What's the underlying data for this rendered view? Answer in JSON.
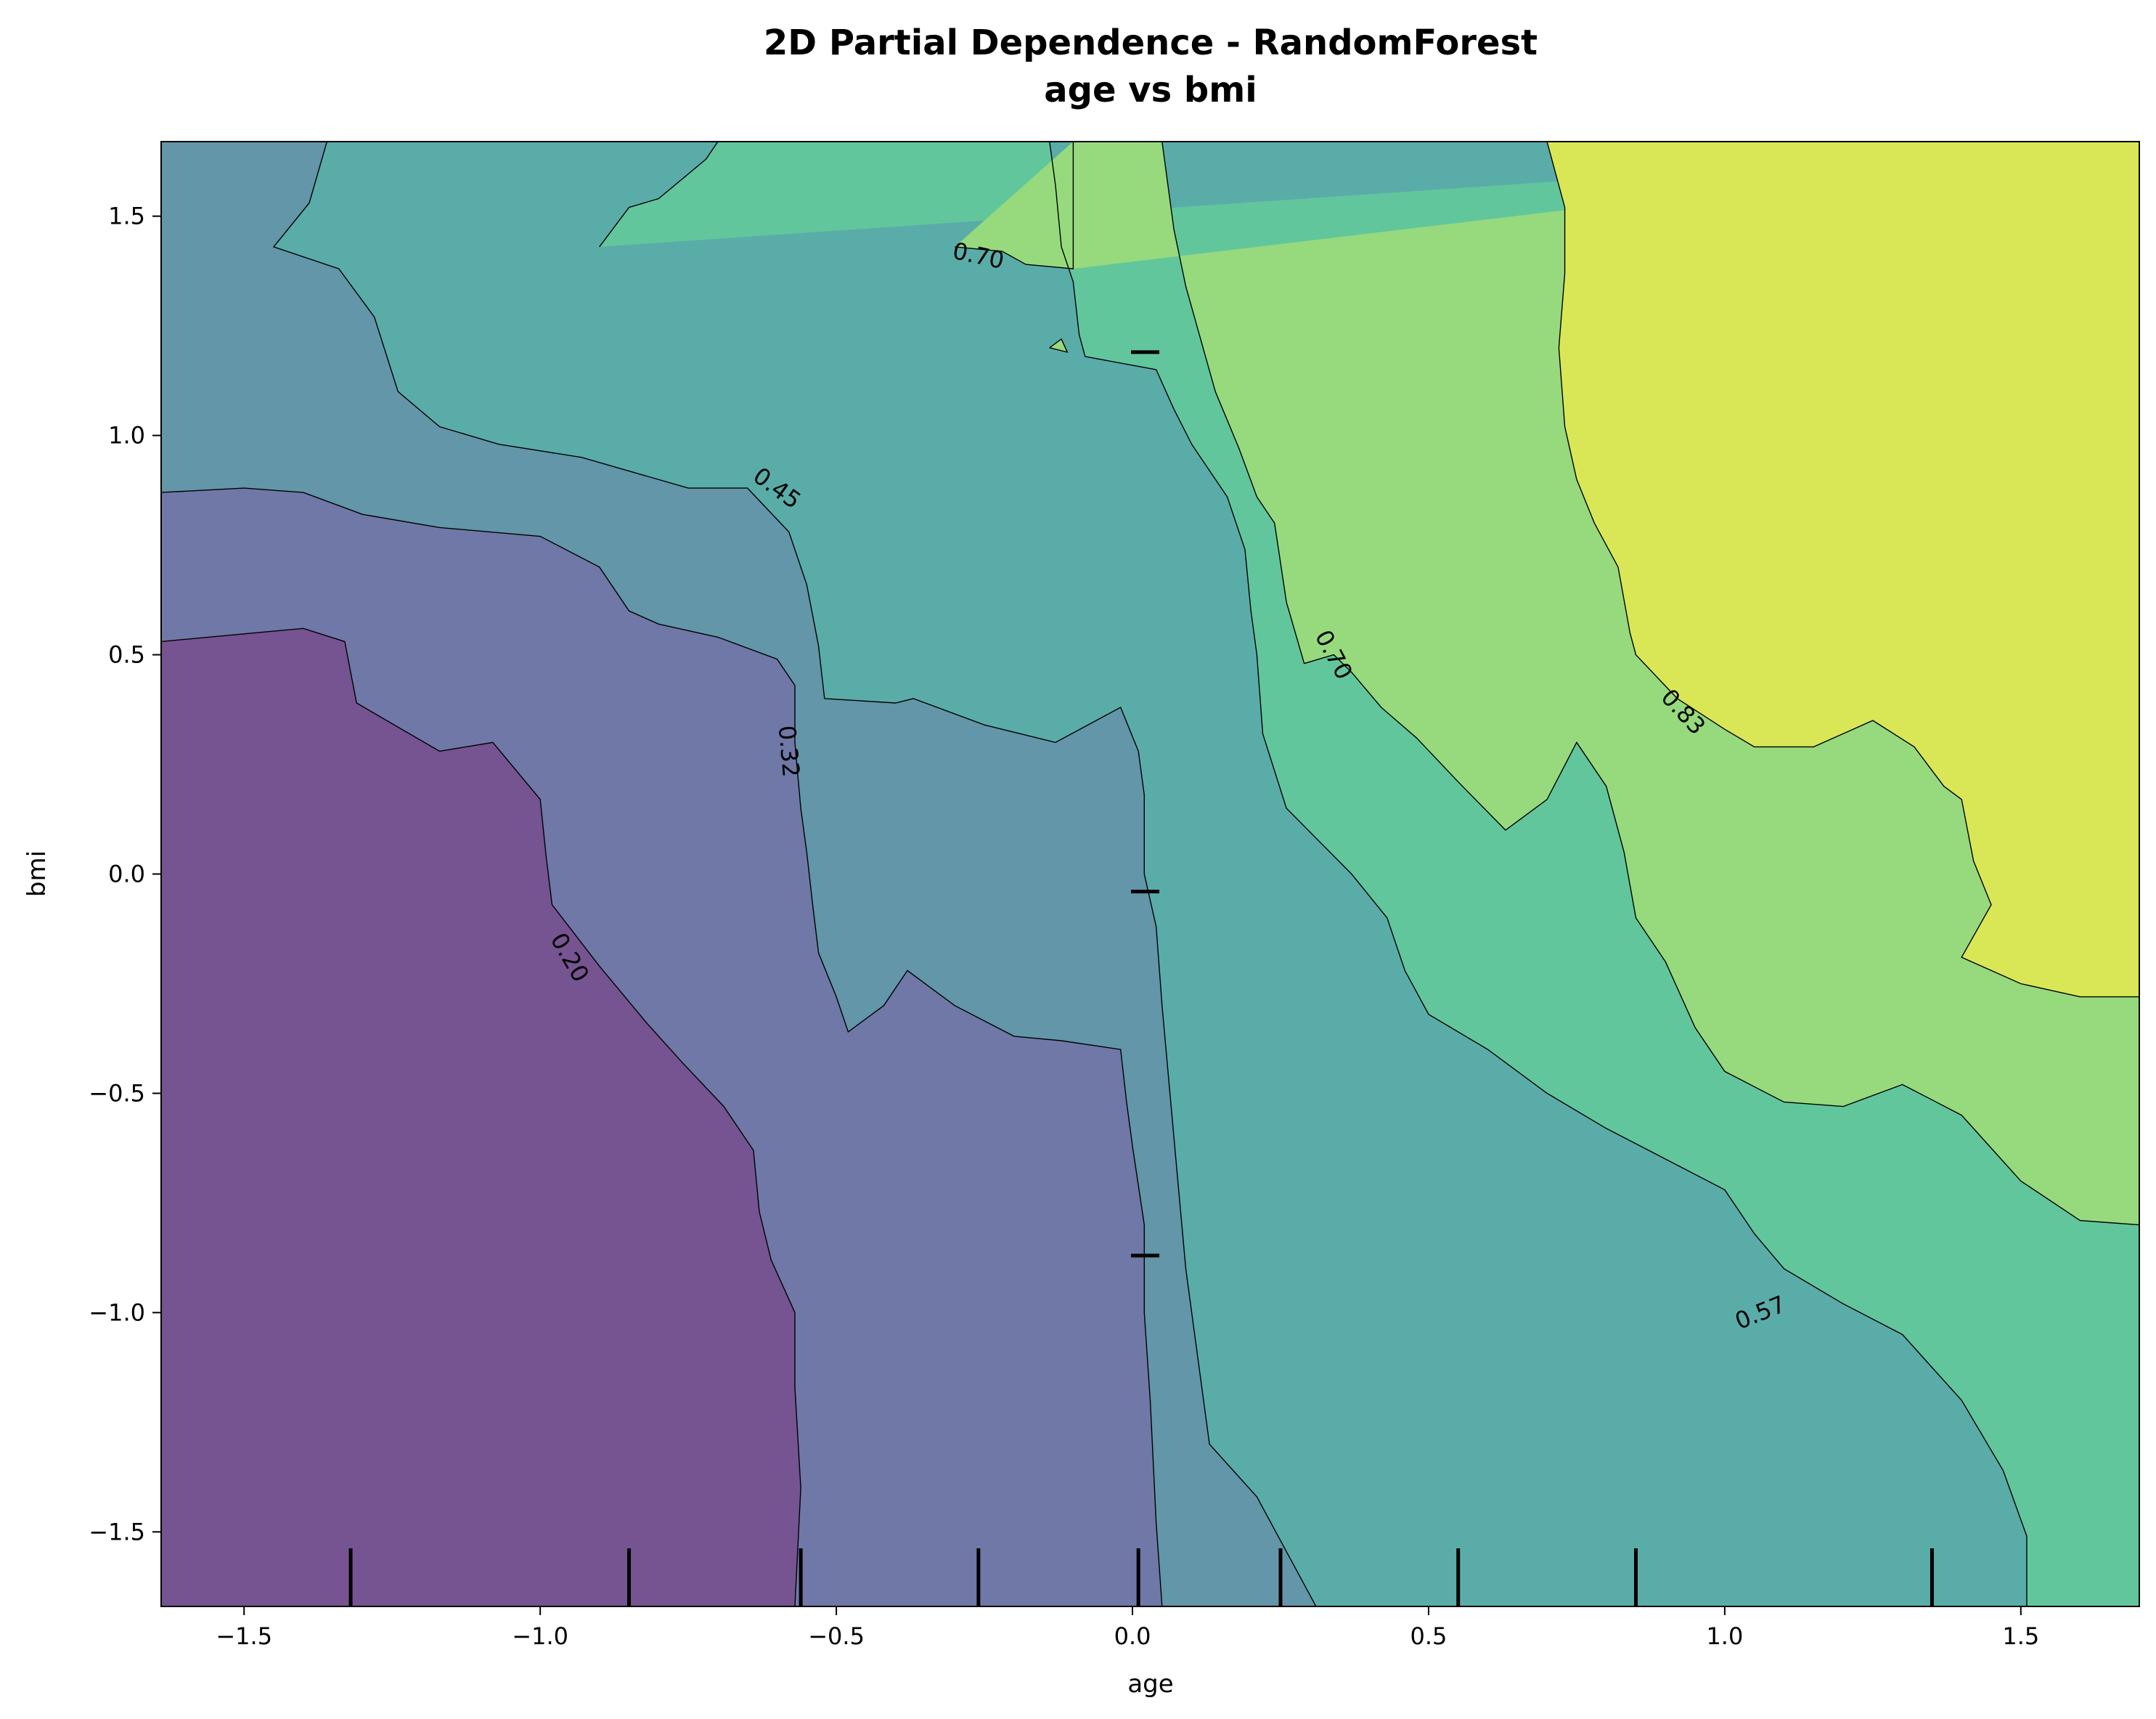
{
  "chart_data": {
    "type": "contour",
    "title": "2D Partial Dependence - RandomForest",
    "subtitle": "age vs bmi",
    "xlabel": "age",
    "ylabel": "bmi",
    "xlim": [
      -1.64,
      1.7
    ],
    "ylim": [
      -1.67,
      1.67
    ],
    "xticks": [
      {
        "value": -1.5,
        "label": "−1.5"
      },
      {
        "value": -1.0,
        "label": "−1.0"
      },
      {
        "value": -0.5,
        "label": "−0.5"
      },
      {
        "value": 0.0,
        "label": "0.0"
      },
      {
        "value": 0.5,
        "label": "0.5"
      },
      {
        "value": 1.0,
        "label": "1.0"
      },
      {
        "value": 1.5,
        "label": "1.5"
      }
    ],
    "yticks": [
      {
        "value": -1.5,
        "label": "−1.5"
      },
      {
        "value": -1.0,
        "label": "−1.0"
      },
      {
        "value": -0.5,
        "label": "−0.5"
      },
      {
        "value": 0.0,
        "label": "0.0"
      },
      {
        "value": 0.5,
        "label": "0.5"
      },
      {
        "value": 1.0,
        "label": "1.0"
      },
      {
        "value": 1.5,
        "label": "1.5"
      }
    ],
    "fill_colors": [
      "#765391",
      "#6f78a6",
      "#6296a8",
      "#5aaca9",
      "#62c69c",
      "#96da7d",
      "#d9e756"
    ],
    "contour_levels": [
      0.2,
      0.32,
      0.45,
      0.57,
      0.7,
      0.83
    ],
    "contour_lines": [
      {
        "level": 0.2,
        "points": [
          [
            -1.64,
            0.53
          ],
          [
            -1.4,
            0.56
          ],
          [
            -1.33,
            0.53
          ],
          [
            -1.31,
            0.39
          ],
          [
            -1.17,
            0.28
          ],
          [
            -1.08,
            0.3
          ],
          [
            -1.0,
            0.17
          ],
          [
            -0.99,
            0.04
          ],
          [
            -0.98,
            -0.07
          ],
          [
            -0.9,
            -0.21
          ],
          [
            -0.82,
            -0.34
          ],
          [
            -0.76,
            -0.43
          ],
          [
            -0.69,
            -0.53
          ],
          [
            -0.64,
            -0.63
          ],
          [
            -0.63,
            -0.77
          ],
          [
            -0.61,
            -0.88
          ],
          [
            -0.57,
            -1.0
          ],
          [
            -0.57,
            -1.17
          ],
          [
            -0.56,
            -1.4
          ],
          [
            -0.57,
            -1.67
          ]
        ]
      },
      {
        "level": 0.32,
        "points": [
          [
            -1.64,
            0.87
          ],
          [
            -1.5,
            0.88
          ],
          [
            -1.4,
            0.87
          ],
          [
            -1.3,
            0.82
          ],
          [
            -1.17,
            0.79
          ],
          [
            -1.0,
            0.77
          ],
          [
            -0.9,
            0.7
          ],
          [
            -0.85,
            0.6
          ],
          [
            -0.8,
            0.57
          ],
          [
            -0.7,
            0.54
          ],
          [
            -0.6,
            0.49
          ],
          [
            -0.57,
            0.43
          ],
          [
            -0.57,
            0.3
          ],
          [
            -0.56,
            0.15
          ],
          [
            -0.55,
            0.05
          ],
          [
            -0.54,
            -0.07
          ],
          [
            -0.53,
            -0.18
          ],
          [
            -0.5,
            -0.28
          ],
          [
            -0.48,
            -0.36
          ],
          [
            -0.42,
            -0.3
          ],
          [
            -0.38,
            -0.22
          ],
          [
            -0.3,
            -0.3
          ],
          [
            -0.2,
            -0.37
          ],
          [
            -0.12,
            -0.38
          ],
          [
            -0.02,
            -0.4
          ],
          [
            -0.01,
            -0.52
          ],
          [
            0.0,
            -0.62
          ],
          [
            0.02,
            -0.8
          ],
          [
            0.02,
            -1.0
          ],
          [
            0.03,
            -1.2
          ],
          [
            0.04,
            -1.48
          ],
          [
            0.05,
            -1.67
          ]
        ]
      },
      {
        "level": 0.45,
        "points": [
          [
            -1.64,
            1.67
          ],
          [
            -1.36,
            1.67
          ],
          [
            -1.39,
            1.53
          ],
          [
            -1.45,
            1.43
          ],
          [
            -1.34,
            1.38
          ],
          [
            -1.28,
            1.27
          ],
          [
            -1.24,
            1.1
          ],
          [
            -1.17,
            1.02
          ],
          [
            -1.07,
            0.98
          ],
          [
            -0.93,
            0.95
          ],
          [
            -0.75,
            0.88
          ],
          [
            -0.65,
            0.88
          ],
          [
            -0.58,
            0.78
          ],
          [
            -0.55,
            0.66
          ],
          [
            -0.53,
            0.52
          ],
          [
            -0.52,
            0.4
          ],
          [
            -0.4,
            0.39
          ],
          [
            -0.37,
            0.4
          ],
          [
            -0.25,
            0.34
          ],
          [
            -0.13,
            0.3
          ],
          [
            -0.02,
            0.38
          ],
          [
            0.01,
            0.28
          ],
          [
            0.02,
            0.18
          ],
          [
            0.02,
            0.0
          ],
          [
            0.04,
            -0.12
          ],
          [
            0.05,
            -0.3
          ],
          [
            0.07,
            -0.6
          ],
          [
            0.09,
            -0.9
          ],
          [
            0.11,
            -1.1
          ],
          [
            0.13,
            -1.3
          ],
          [
            0.21,
            -1.42
          ],
          [
            0.31,
            -1.67
          ]
        ]
      },
      {
        "level": 0.57,
        "points": [
          [
            -0.9,
            1.43
          ],
          [
            -0.85,
            1.52
          ],
          [
            -0.8,
            1.54
          ],
          [
            -0.72,
            1.63
          ],
          [
            -0.7,
            1.67
          ],
          [
            -0.14,
            1.67
          ],
          [
            -0.13,
            1.57
          ],
          [
            -0.12,
            1.43
          ],
          [
            -0.1,
            1.35
          ],
          [
            -0.09,
            1.23
          ],
          [
            -0.08,
            1.18
          ],
          [
            0.04,
            1.15
          ],
          [
            0.07,
            1.06
          ],
          [
            0.1,
            0.98
          ],
          [
            0.16,
            0.86
          ],
          [
            0.19,
            0.74
          ],
          [
            0.2,
            0.6
          ],
          [
            0.21,
            0.5
          ],
          [
            0.22,
            0.32
          ],
          [
            0.26,
            0.15
          ],
          [
            0.37,
            0.0
          ],
          [
            0.43,
            -0.1
          ],
          [
            0.46,
            -0.22
          ],
          [
            0.5,
            -0.32
          ],
          [
            0.6,
            -0.4
          ],
          [
            0.7,
            -0.5
          ],
          [
            0.8,
            -0.58
          ],
          [
            0.9,
            -0.65
          ],
          [
            1.0,
            -0.72
          ],
          [
            1.05,
            -0.82
          ],
          [
            1.1,
            -0.9
          ],
          [
            1.2,
            -0.98
          ],
          [
            1.3,
            -1.05
          ],
          [
            1.4,
            -1.2
          ],
          [
            1.47,
            -1.36
          ],
          [
            1.51,
            -1.51
          ],
          [
            1.51,
            -1.67
          ]
        ]
      },
      {
        "level": 0.7,
        "points": [
          [
            -0.3,
            1.43
          ],
          [
            -0.22,
            1.42
          ],
          [
            -0.18,
            1.39
          ],
          [
            -0.1,
            1.38
          ],
          [
            -0.1,
            1.55
          ],
          [
            -0.1,
            1.67
          ],
          [
            0.05,
            1.67
          ],
          [
            0.07,
            1.47
          ],
          [
            0.09,
            1.34
          ],
          [
            0.14,
            1.1
          ],
          [
            0.18,
            0.97
          ],
          [
            0.21,
            0.86
          ],
          [
            0.24,
            0.8
          ],
          [
            0.26,
            0.62
          ],
          [
            0.29,
            0.48
          ],
          [
            0.34,
            0.5
          ],
          [
            0.37,
            0.46
          ],
          [
            0.42,
            0.38
          ],
          [
            0.48,
            0.31
          ],
          [
            0.55,
            0.21
          ],
          [
            0.63,
            0.1
          ],
          [
            0.7,
            0.17
          ],
          [
            0.75,
            0.3
          ],
          [
            0.8,
            0.2
          ],
          [
            0.83,
            0.05
          ],
          [
            0.85,
            -0.1
          ],
          [
            0.9,
            -0.2
          ],
          [
            0.95,
            -0.35
          ],
          [
            1.0,
            -0.45
          ],
          [
            1.1,
            -0.52
          ],
          [
            1.2,
            -0.53
          ],
          [
            1.3,
            -0.48
          ],
          [
            1.4,
            -0.55
          ],
          [
            1.5,
            -0.7
          ],
          [
            1.6,
            -0.79
          ],
          [
            1.7,
            -0.8
          ]
        ]
      },
      {
        "level": 0.83,
        "points": [
          [
            0.7,
            1.67
          ],
          [
            0.73,
            1.52
          ],
          [
            0.73,
            1.37
          ],
          [
            0.72,
            1.2
          ],
          [
            0.73,
            1.02
          ],
          [
            0.75,
            0.9
          ],
          [
            0.78,
            0.8
          ],
          [
            0.82,
            0.7
          ],
          [
            0.84,
            0.55
          ],
          [
            0.85,
            0.5
          ],
          [
            0.92,
            0.4
          ],
          [
            1.0,
            0.33
          ],
          [
            1.05,
            0.29
          ],
          [
            1.15,
            0.29
          ],
          [
            1.25,
            0.35
          ],
          [
            1.32,
            0.29
          ],
          [
            1.37,
            0.2
          ],
          [
            1.4,
            0.17
          ],
          [
            1.42,
            0.03
          ],
          [
            1.45,
            -0.07
          ],
          [
            1.4,
            -0.19
          ],
          [
            1.5,
            -0.25
          ],
          [
            1.6,
            -0.28
          ],
          [
            1.7,
            -0.28
          ]
        ]
      }
    ],
    "contour_labels": [
      {
        "text": "0.20",
        "x": -0.95,
        "y": -0.19,
        "angle": 60
      },
      {
        "text": "0.32",
        "x": -0.58,
        "y": 0.28,
        "angle": 85
      },
      {
        "text": "0.45",
        "x": -0.6,
        "y": 0.88,
        "angle": 36
      },
      {
        "text": "0.57",
        "x": 1.06,
        "y": -1.0,
        "angle": -22
      },
      {
        "text": "0.70",
        "x": 0.34,
        "y": 0.5,
        "angle": 62
      },
      {
        "text": "0.70",
        "x": -0.26,
        "y": 1.41,
        "angle": 12
      },
      {
        "text": "0.83",
        "x": 0.93,
        "y": 0.37,
        "angle": 47
      }
    ],
    "rug_x": [
      -1.32,
      -0.85,
      -0.56,
      -0.26,
      0.01,
      0.25,
      0.55,
      0.85,
      1.35
    ],
    "rug_y": [
      1.19,
      -0.04,
      -0.87
    ]
  }
}
